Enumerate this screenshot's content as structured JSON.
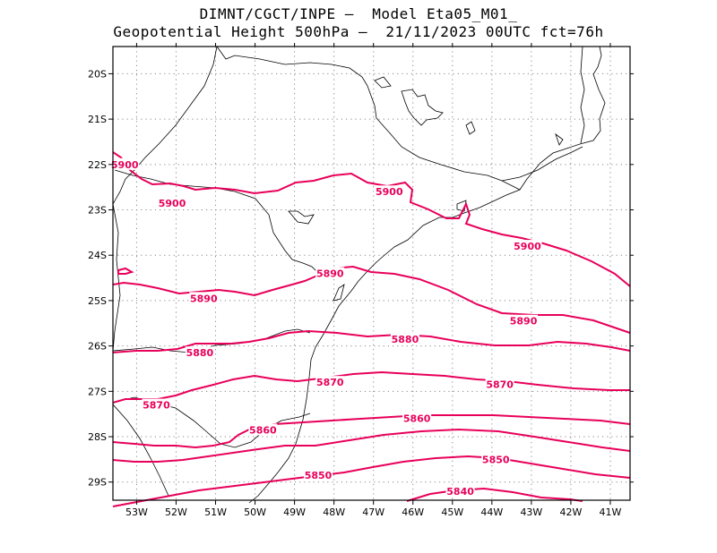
{
  "header": {
    "line1": "DIMNT/CGCT/INPE –  Model Eta05_M01_",
    "line2": "Geopotential Height 500hPa –  21/11/2023 00UTC fct=76h"
  },
  "map": {
    "lon_range": [
      -53.6,
      -40.5
    ],
    "lat_range": [
      -29.4,
      -19.4
    ],
    "lon_ticks": [
      {
        "value": -53,
        "label": "53W"
      },
      {
        "value": -52,
        "label": "52W"
      },
      {
        "value": -51,
        "label": "51W"
      },
      {
        "value": -50,
        "label": "50W"
      },
      {
        "value": -49,
        "label": "49W"
      },
      {
        "value": -48,
        "label": "48W"
      },
      {
        "value": -47,
        "label": "47W"
      },
      {
        "value": -46,
        "label": "46W"
      },
      {
        "value": -45,
        "label": "45W"
      },
      {
        "value": -44,
        "label": "44W"
      },
      {
        "value": -43,
        "label": "43W"
      },
      {
        "value": -42,
        "label": "42W"
      },
      {
        "value": -41,
        "label": "41W"
      }
    ],
    "lat_ticks": [
      {
        "value": -20,
        "label": "20S"
      },
      {
        "value": -21,
        "label": "21S"
      },
      {
        "value": -22,
        "label": "22S"
      },
      {
        "value": -23,
        "label": "23S"
      },
      {
        "value": -24,
        "label": "24S"
      },
      {
        "value": -25,
        "label": "25S"
      },
      {
        "value": -26,
        "label": "26S"
      },
      {
        "value": -27,
        "label": "27S"
      },
      {
        "value": -28,
        "label": "28S"
      },
      {
        "value": -29,
        "label": "29S"
      }
    ],
    "contour_color": "#e8005a",
    "contour_labels": [
      {
        "text": "5900",
        "lon": -53.3,
        "lat": -22.0
      },
      {
        "text": "5900",
        "lon": -52.1,
        "lat": -22.85
      },
      {
        "text": "5900",
        "lon": -46.6,
        "lat": -22.6
      },
      {
        "text": "5900",
        "lon": -43.1,
        "lat": -23.8
      },
      {
        "text": "5890",
        "lon": -51.3,
        "lat": -24.95
      },
      {
        "text": "5890",
        "lon": -48.1,
        "lat": -24.4
      },
      {
        "text": "5890",
        "lon": -43.2,
        "lat": -25.45
      },
      {
        "text": "5880",
        "lon": -51.4,
        "lat": -26.15
      },
      {
        "text": "5880",
        "lon": -46.2,
        "lat": -25.85
      },
      {
        "text": "5870",
        "lon": -52.5,
        "lat": -27.3
      },
      {
        "text": "5870",
        "lon": -48.1,
        "lat": -26.8
      },
      {
        "text": "5870",
        "lon": -43.8,
        "lat": -26.85
      },
      {
        "text": "5860",
        "lon": -49.8,
        "lat": -27.85
      },
      {
        "text": "5860",
        "lon": -45.9,
        "lat": -27.6
      },
      {
        "text": "5850",
        "lon": -48.4,
        "lat": -28.85
      },
      {
        "text": "5850",
        "lon": -43.9,
        "lat": -28.5
      },
      {
        "text": "5840",
        "lon": -44.8,
        "lat": -29.2
      }
    ]
  }
}
